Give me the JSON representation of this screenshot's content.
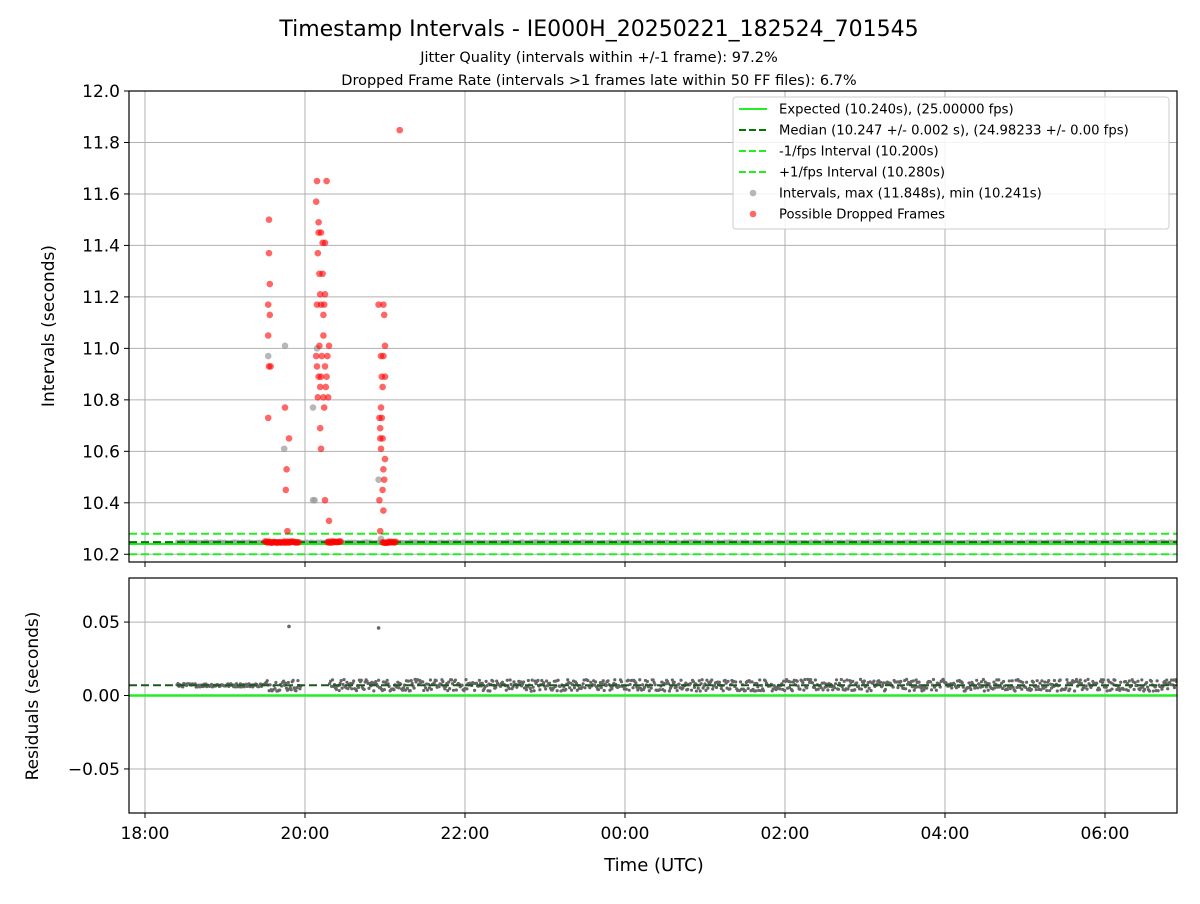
{
  "figure": {
    "title": "Timestamp Intervals - IE000H_20250221_182524_701545",
    "subtitle_1": "Jitter Quality (intervals within +/-1 frame): 97.2%",
    "subtitle_2": "Dropped Frame Rate (intervals >1 frames late within 50 FF files): 6.7%"
  },
  "colors": {
    "expected": "#22ee22",
    "median": "#007700",
    "interval_band": "#22ee22",
    "intervals": "#999999",
    "dropped": "#ff0000",
    "residuals": "#666666",
    "grid": "#b0b0b0"
  },
  "chart_data": [
    {
      "type": "scatter",
      "ylabel": "Intervals (seconds)",
      "ylim": [
        10.17,
        12.0
      ],
      "yticks": [
        "10.2",
        "10.4",
        "10.6",
        "10.8",
        "11.0",
        "11.2",
        "11.4",
        "11.6",
        "11.8",
        "12.0"
      ],
      "ytick_values": [
        10.2,
        10.4,
        10.6,
        10.8,
        11.0,
        11.2,
        11.4,
        11.6,
        11.8,
        12.0
      ],
      "x_unit": "hours since 18:00 UTC",
      "xlim": [
        -0.2,
        12.9
      ],
      "grid": true,
      "legend_position": "top-right",
      "legend": [
        {
          "label": "Expected (10.240s), (25.00000 fps)",
          "style": "solid",
          "color": "#22ee22"
        },
        {
          "label": "Median (10.247 +/- 0.002 s), (24.98233 +/- 0.00 fps)",
          "style": "dashed",
          "color": "#007700"
        },
        {
          "label": "-1/fps Interval (10.200s)",
          "style": "dashed",
          "color": "#22ee22"
        },
        {
          "label": "+1/fps Interval (10.280s)",
          "style": "dashed",
          "color": "#22ee22"
        },
        {
          "label": "Intervals, max (11.848s), min (10.241s)",
          "style": "marker",
          "color": "#999999"
        },
        {
          "label": "Possible Dropped Frames",
          "style": "marker",
          "color": "#ff0000"
        }
      ],
      "reference_lines": {
        "expected": 10.24,
        "median": 10.247,
        "minus_one_frame": 10.2,
        "plus_one_frame": 10.28
      },
      "baseline_intervals": {
        "x_start": 0.4,
        "x_end": 12.9,
        "y": 10.247
      },
      "intervals_outliers": [
        {
          "x": 1.54,
          "y": 10.97
        },
        {
          "x": 1.75,
          "y": 11.01
        },
        {
          "x": 1.74,
          "y": 10.61
        },
        {
          "x": 2.1,
          "y": 10.41
        },
        {
          "x": 2.12,
          "y": 10.41
        },
        {
          "x": 2.1,
          "y": 10.77
        },
        {
          "x": 2.15,
          "y": 11.0
        },
        {
          "x": 2.92,
          "y": 10.49
        },
        {
          "x": 2.95,
          "y": 10.26
        }
      ],
      "dropped_frames": [
        {
          "x": 1.55,
          "y": 11.5
        },
        {
          "x": 1.55,
          "y": 11.37
        },
        {
          "x": 1.56,
          "y": 11.25
        },
        {
          "x": 1.54,
          "y": 11.17
        },
        {
          "x": 1.56,
          "y": 11.13
        },
        {
          "x": 1.54,
          "y": 11.05
        },
        {
          "x": 1.55,
          "y": 10.93
        },
        {
          "x": 1.57,
          "y": 10.93
        },
        {
          "x": 1.54,
          "y": 10.73
        },
        {
          "x": 1.75,
          "y": 10.77
        },
        {
          "x": 1.8,
          "y": 10.65
        },
        {
          "x": 1.77,
          "y": 10.53
        },
        {
          "x": 1.76,
          "y": 10.45
        },
        {
          "x": 1.78,
          "y": 10.29
        },
        {
          "x": 2.15,
          "y": 11.65
        },
        {
          "x": 2.27,
          "y": 11.65
        },
        {
          "x": 2.14,
          "y": 11.57
        },
        {
          "x": 2.17,
          "y": 11.49
        },
        {
          "x": 2.17,
          "y": 11.45
        },
        {
          "x": 2.2,
          "y": 11.45
        },
        {
          "x": 2.22,
          "y": 11.41
        },
        {
          "x": 2.25,
          "y": 11.41
        },
        {
          "x": 2.16,
          "y": 11.37
        },
        {
          "x": 2.18,
          "y": 11.29
        },
        {
          "x": 2.22,
          "y": 11.29
        },
        {
          "x": 2.19,
          "y": 11.21
        },
        {
          "x": 2.25,
          "y": 11.21
        },
        {
          "x": 2.15,
          "y": 11.17
        },
        {
          "x": 2.2,
          "y": 11.17
        },
        {
          "x": 2.24,
          "y": 11.17
        },
        {
          "x": 2.23,
          "y": 11.13
        },
        {
          "x": 2.23,
          "y": 11.05
        },
        {
          "x": 2.18,
          "y": 11.01
        },
        {
          "x": 2.3,
          "y": 11.01
        },
        {
          "x": 2.14,
          "y": 10.97
        },
        {
          "x": 2.21,
          "y": 10.97
        },
        {
          "x": 2.28,
          "y": 10.97
        },
        {
          "x": 2.15,
          "y": 10.93
        },
        {
          "x": 2.25,
          "y": 10.93
        },
        {
          "x": 2.17,
          "y": 10.89
        },
        {
          "x": 2.2,
          "y": 10.89
        },
        {
          "x": 2.27,
          "y": 10.89
        },
        {
          "x": 2.19,
          "y": 10.85
        },
        {
          "x": 2.26,
          "y": 10.85
        },
        {
          "x": 2.16,
          "y": 10.81
        },
        {
          "x": 2.23,
          "y": 10.81
        },
        {
          "x": 2.29,
          "y": 10.81
        },
        {
          "x": 2.24,
          "y": 10.77
        },
        {
          "x": 2.19,
          "y": 10.69
        },
        {
          "x": 2.2,
          "y": 10.61
        },
        {
          "x": 2.25,
          "y": 10.41
        },
        {
          "x": 2.3,
          "y": 10.33
        },
        {
          "x": 3.184,
          "y": 11.848
        },
        {
          "x": 2.92,
          "y": 11.17
        },
        {
          "x": 2.98,
          "y": 11.17
        },
        {
          "x": 2.99,
          "y": 11.13
        },
        {
          "x": 3.0,
          "y": 11.01
        },
        {
          "x": 2.95,
          "y": 10.97
        },
        {
          "x": 2.98,
          "y": 10.97
        },
        {
          "x": 2.96,
          "y": 10.89
        },
        {
          "x": 3.0,
          "y": 10.89
        },
        {
          "x": 2.97,
          "y": 10.85
        },
        {
          "x": 2.95,
          "y": 10.77
        },
        {
          "x": 2.93,
          "y": 10.73
        },
        {
          "x": 2.96,
          "y": 10.73
        },
        {
          "x": 2.94,
          "y": 10.69
        },
        {
          "x": 2.94,
          "y": 10.65
        },
        {
          "x": 2.97,
          "y": 10.65
        },
        {
          "x": 2.95,
          "y": 10.61
        },
        {
          "x": 3.0,
          "y": 10.57
        },
        {
          "x": 2.98,
          "y": 10.53
        },
        {
          "x": 2.99,
          "y": 10.49
        },
        {
          "x": 2.97,
          "y": 10.45
        },
        {
          "x": 2.93,
          "y": 10.41
        },
        {
          "x": 2.98,
          "y": 10.37
        },
        {
          "x": 2.94,
          "y": 10.29
        }
      ],
      "dropped_cluster_on_median": [
        {
          "x_start": 1.5,
          "x_end": 1.92,
          "y": 10.247
        },
        {
          "x_start": 2.28,
          "x_end": 2.45,
          "y": 10.247
        },
        {
          "x_start": 2.97,
          "x_end": 3.15,
          "y": 10.247
        }
      ]
    },
    {
      "type": "scatter",
      "xlabel": "Time (UTC)",
      "ylabel": "Residuals (seconds)",
      "ylim": [
        -0.08,
        0.08
      ],
      "yticks": [
        "0.05",
        "0.00",
        "−0.05"
      ],
      "ytick_values": [
        0.05,
        0.0,
        -0.05
      ],
      "xlim": [
        -0.2,
        12.9
      ],
      "xticks": [
        "18:00",
        "20:00",
        "22:00",
        "00:00",
        "02:00",
        "04:00",
        "06:00"
      ],
      "xtick_values": [
        0,
        2,
        4,
        6,
        8,
        10,
        12
      ],
      "grid": true,
      "reference_lines": {
        "expected": 0.0,
        "median": 0.007
      },
      "residual_band": {
        "x_start": 0.4,
        "x_end": 12.9,
        "center": 0.007,
        "spread": 0.004
      },
      "residual_outliers": [
        {
          "x": 1.8,
          "y": 0.047
        },
        {
          "x": 2.92,
          "y": 0.046
        }
      ]
    }
  ]
}
